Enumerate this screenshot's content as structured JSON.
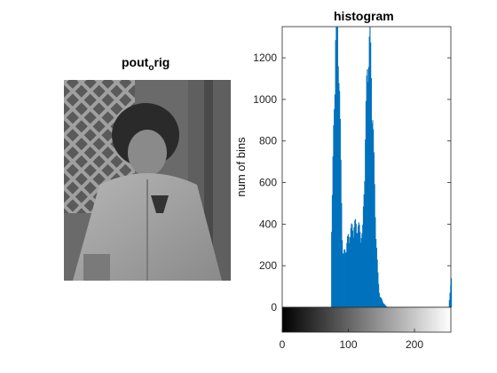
{
  "left_panel": {
    "title_main": "pout",
    "title_sub": "o",
    "title_tail": "rig",
    "image": "grayscale-photo-of-child-in-jacket"
  },
  "chart_data": {
    "type": "bar",
    "title": "histogram",
    "ylabel": "num of bins",
    "xlabel": "",
    "xlim": [
      0,
      255
    ],
    "ylim": [
      0,
      1350
    ],
    "xticks": [
      0,
      100,
      200
    ],
    "yticks": [
      0,
      200,
      400,
      600,
      800,
      1000,
      1200
    ],
    "colorbar": "grayscale gradient 0 to 255",
    "bar_color": "#0072bd",
    "values_summary": {
      "range_start": 74,
      "range_end": 160,
      "peak1": {
        "x": 82,
        "y": 1350
      },
      "peak2": {
        "x": 131,
        "y": 1220
      },
      "trough": {
        "x": 110,
        "y": 400
      },
      "spike_at": {
        "x": 255,
        "y": 140
      }
    }
  }
}
